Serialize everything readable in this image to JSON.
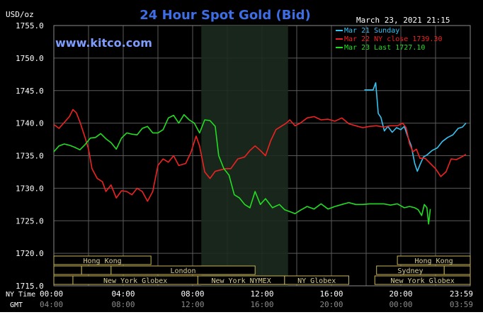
{
  "chart_data": {
    "type": "line",
    "title": "24 Hour Spot Gold (Bid)",
    "ylabel": "USD/oz",
    "timestamp": "March 23, 2021 21:15",
    "watermark": "www.kitco.com",
    "ylim": [
      1715,
      1755
    ],
    "y_ticks": [
      "1755.0",
      "1750.0",
      "1745.0",
      "1740.0",
      "1735.0",
      "1730.0",
      "1725.0",
      "1720.0",
      "1715.0"
    ],
    "x_ticks_ny": [
      "00:00",
      "04:00",
      "08:00",
      "12:00",
      "16:00",
      "20:00",
      "23:59"
    ],
    "x_ticks_gmt": [
      "04:00",
      "08:00",
      "12:00",
      "16:00",
      "20:00",
      "00:00",
      "03:59"
    ],
    "nytime_label": "NY Time",
    "gmt_label": "GMT",
    "grid": true,
    "legend_position": "top-right",
    "colors": {
      "background": "#000000",
      "grid": "#5a5a5a",
      "highlight": "#1c2a1e",
      "axis_text": "#ffffff",
      "title": "#3d6ee6",
      "brand": "#7f9dff",
      "session_border": "#c7b45a",
      "session_text": "#d8cf8f"
    },
    "highlight_range": [
      8.5,
      13.5
    ],
    "series": [
      {
        "name": "Mar 21 Sunday",
        "color": "#36c2f2",
        "points": [
          [
            17.9,
            1745.1
          ],
          [
            18.4,
            1745.1
          ],
          [
            18.55,
            1746.2
          ],
          [
            18.7,
            1741.5
          ],
          [
            18.85,
            1740.9
          ],
          [
            19.05,
            1738.8
          ],
          [
            19.25,
            1739.5
          ],
          [
            19.5,
            1738.6
          ],
          [
            19.75,
            1739.3
          ],
          [
            20.0,
            1739.0
          ],
          [
            20.2,
            1739.5
          ],
          [
            20.4,
            1737.9
          ],
          [
            20.6,
            1736.5
          ],
          [
            20.8,
            1733.8
          ],
          [
            20.95,
            1732.6
          ],
          [
            21.1,
            1733.6
          ],
          [
            21.3,
            1734.8
          ],
          [
            21.5,
            1735.1
          ],
          [
            21.8,
            1735.8
          ],
          [
            22.1,
            1736.2
          ],
          [
            22.4,
            1737.2
          ],
          [
            22.7,
            1737.8
          ],
          [
            23.0,
            1738.2
          ],
          [
            23.3,
            1739.2
          ],
          [
            23.55,
            1739.4
          ],
          [
            23.75,
            1740.0
          ]
        ]
      },
      {
        "name": "Mar 22 NY close 1739.30",
        "color": "#ee2222",
        "points": [
          [
            0.0,
            1739.8
          ],
          [
            0.3,
            1739.2
          ],
          [
            0.6,
            1740.1
          ],
          [
            0.9,
            1741.0
          ],
          [
            1.1,
            1742.1
          ],
          [
            1.3,
            1741.6
          ],
          [
            1.5,
            1740.2
          ],
          [
            1.8,
            1737.8
          ],
          [
            2.0,
            1736.0
          ],
          [
            2.2,
            1733.0
          ],
          [
            2.5,
            1731.5
          ],
          [
            2.8,
            1731.0
          ],
          [
            3.0,
            1729.5
          ],
          [
            3.3,
            1730.5
          ],
          [
            3.6,
            1728.5
          ],
          [
            3.9,
            1729.6
          ],
          [
            4.2,
            1729.5
          ],
          [
            4.5,
            1729.0
          ],
          [
            4.8,
            1730.0
          ],
          [
            5.1,
            1729.5
          ],
          [
            5.4,
            1728.0
          ],
          [
            5.7,
            1729.5
          ],
          [
            6.0,
            1733.5
          ],
          [
            6.3,
            1734.5
          ],
          [
            6.6,
            1734.0
          ],
          [
            6.9,
            1735.0
          ],
          [
            7.2,
            1733.5
          ],
          [
            7.6,
            1733.8
          ],
          [
            7.9,
            1735.5
          ],
          [
            8.2,
            1738.0
          ],
          [
            8.4,
            1736.5
          ],
          [
            8.7,
            1732.5
          ],
          [
            9.0,
            1731.5
          ],
          [
            9.3,
            1732.6
          ],
          [
            9.6,
            1732.8
          ],
          [
            9.9,
            1733.0
          ],
          [
            10.2,
            1733.0
          ],
          [
            10.6,
            1734.5
          ],
          [
            11.0,
            1734.8
          ],
          [
            11.3,
            1735.8
          ],
          [
            11.6,
            1736.5
          ],
          [
            11.9,
            1735.8
          ],
          [
            12.2,
            1735.0
          ],
          [
            12.5,
            1737.3
          ],
          [
            12.8,
            1739.0
          ],
          [
            13.1,
            1739.5
          ],
          [
            13.4,
            1740.0
          ],
          [
            13.6,
            1740.5
          ],
          [
            13.9,
            1739.6
          ],
          [
            14.2,
            1740.0
          ],
          [
            14.6,
            1740.8
          ],
          [
            15.0,
            1741.0
          ],
          [
            15.4,
            1740.5
          ],
          [
            15.8,
            1740.6
          ],
          [
            16.2,
            1740.3
          ],
          [
            16.6,
            1740.8
          ],
          [
            17.0,
            1739.9
          ],
          [
            17.4,
            1739.6
          ],
          [
            17.8,
            1739.3
          ],
          [
            18.2,
            1739.5
          ],
          [
            18.6,
            1739.6
          ],
          [
            19.0,
            1739.4
          ],
          [
            19.4,
            1739.6
          ],
          [
            19.8,
            1739.6
          ],
          [
            20.1,
            1740.0
          ],
          [
            20.3,
            1739.3
          ],
          [
            20.5,
            1736.8
          ],
          [
            20.7,
            1735.6
          ],
          [
            20.9,
            1736.0
          ],
          [
            21.1,
            1734.6
          ],
          [
            21.4,
            1734.6
          ],
          [
            21.7,
            1733.8
          ],
          [
            22.0,
            1733.0
          ],
          [
            22.3,
            1731.8
          ],
          [
            22.6,
            1732.5
          ],
          [
            22.9,
            1734.5
          ],
          [
            23.2,
            1734.4
          ],
          [
            23.5,
            1734.8
          ],
          [
            23.75,
            1735.2
          ]
        ]
      },
      {
        "name": "Mar 23 Last 1727.10",
        "color": "#22dd22",
        "points": [
          [
            0.0,
            1735.6
          ],
          [
            0.3,
            1736.5
          ],
          [
            0.6,
            1736.8
          ],
          [
            0.9,
            1736.6
          ],
          [
            1.2,
            1736.3
          ],
          [
            1.5,
            1735.9
          ],
          [
            1.8,
            1736.7
          ],
          [
            2.1,
            1737.7
          ],
          [
            2.4,
            1737.8
          ],
          [
            2.7,
            1738.4
          ],
          [
            3.0,
            1737.6
          ],
          [
            3.3,
            1737.0
          ],
          [
            3.6,
            1736.0
          ],
          [
            3.9,
            1737.7
          ],
          [
            4.2,
            1738.5
          ],
          [
            4.5,
            1738.3
          ],
          [
            4.8,
            1738.2
          ],
          [
            5.1,
            1739.2
          ],
          [
            5.4,
            1739.5
          ],
          [
            5.7,
            1738.5
          ],
          [
            6.0,
            1738.5
          ],
          [
            6.3,
            1739.0
          ],
          [
            6.6,
            1740.8
          ],
          [
            6.9,
            1741.2
          ],
          [
            7.2,
            1740.0
          ],
          [
            7.5,
            1741.3
          ],
          [
            7.8,
            1740.5
          ],
          [
            8.1,
            1740.0
          ],
          [
            8.4,
            1738.5
          ],
          [
            8.7,
            1740.5
          ],
          [
            9.0,
            1740.4
          ],
          [
            9.3,
            1739.5
          ],
          [
            9.5,
            1735.0
          ],
          [
            9.8,
            1733.0
          ],
          [
            10.1,
            1732.0
          ],
          [
            10.4,
            1729.0
          ],
          [
            10.7,
            1728.5
          ],
          [
            11.0,
            1727.5
          ],
          [
            11.3,
            1727.0
          ],
          [
            11.6,
            1729.5
          ],
          [
            11.9,
            1727.5
          ],
          [
            12.2,
            1728.4
          ],
          [
            12.6,
            1727.0
          ],
          [
            13.0,
            1727.5
          ],
          [
            13.3,
            1726.7
          ],
          [
            13.6,
            1726.4
          ],
          [
            13.9,
            1726.1
          ],
          [
            14.2,
            1726.6
          ],
          [
            14.6,
            1727.2
          ],
          [
            15.0,
            1726.8
          ],
          [
            15.4,
            1727.6
          ],
          [
            15.8,
            1726.8
          ],
          [
            16.2,
            1727.2
          ],
          [
            16.6,
            1727.5
          ],
          [
            17.0,
            1727.8
          ],
          [
            17.4,
            1727.5
          ],
          [
            17.8,
            1727.5
          ],
          [
            18.2,
            1727.6
          ],
          [
            18.6,
            1727.6
          ],
          [
            19.0,
            1727.6
          ],
          [
            19.4,
            1727.4
          ],
          [
            19.8,
            1727.6
          ],
          [
            20.2,
            1727.0
          ],
          [
            20.5,
            1727.2
          ],
          [
            20.8,
            1727.0
          ],
          [
            21.0,
            1726.7
          ],
          [
            21.2,
            1725.8
          ],
          [
            21.35,
            1727.5
          ],
          [
            21.5,
            1727.0
          ],
          [
            21.6,
            1724.5
          ],
          [
            21.7,
            1726.8
          ]
        ]
      }
    ],
    "session_bars": {
      "top": [
        {
          "label": "Hong Kong",
          "start": 0.0,
          "end": 5.6
        },
        {
          "label": "Hong Kong",
          "start": 19.8,
          "end": 24.0
        }
      ],
      "middle": [
        {
          "label": "",
          "start": 0.0,
          "end": 1.6
        },
        {
          "label": "",
          "start": 1.6,
          "end": 3.3
        },
        {
          "label": "London",
          "start": 3.3,
          "end": 11.6
        },
        {
          "label": "Sydney",
          "start": 18.6,
          "end": 22.5
        },
        {
          "label": "",
          "start": 22.5,
          "end": 24.0
        }
      ],
      "bottom": [
        {
          "label": "",
          "start": 0.0,
          "end": 1.1
        },
        {
          "label": "New York Globex",
          "start": 1.1,
          "end": 8.3
        },
        {
          "label": "New York NYMEX",
          "start": 8.3,
          "end": 13.3
        },
        {
          "label": "NY Globex",
          "start": 13.3,
          "end": 17.0
        },
        {
          "label": "New York Globex",
          "start": 18.5,
          "end": 24.0
        }
      ]
    }
  }
}
